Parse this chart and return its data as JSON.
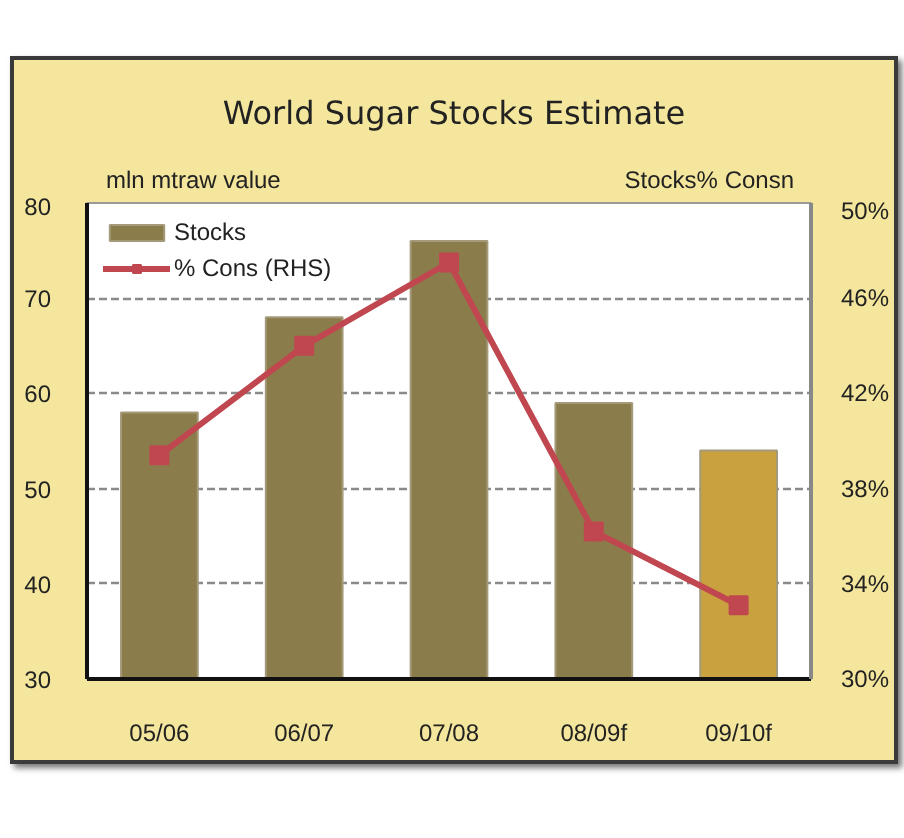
{
  "chart_data": {
    "type": "bar",
    "title": "World Sugar Stocks Estimate",
    "ylabel": "mln mtraw value",
    "y2label": "Stocks% Consn",
    "categories": [
      "05/06",
      "06/07",
      "07/08",
      "08/09f",
      "09/10f"
    ],
    "series": [
      {
        "name": "Stocks",
        "colors": [
          "#8b7d4b",
          "#8b7d4b",
          "#8b7d4b",
          "#8b7d4b",
          "#c9a23f"
        ],
        "values": [
          58,
          68,
          76,
          59,
          54
        ]
      },
      {
        "name": "% Cons (RHS)",
        "type": "line",
        "axis": "y2",
        "color": "#c0474f",
        "marker": "square",
        "values": [
          39.4,
          44.0,
          47.5,
          36.2,
          33.1
        ]
      }
    ],
    "ylim": [
      30,
      80
    ],
    "yticks": [
      30,
      40,
      50,
      60,
      70,
      80
    ],
    "y2lim": [
      30,
      50
    ],
    "y2ticks": [
      {
        "value": 30,
        "label": "30%"
      },
      {
        "value": 34,
        "label": "34%"
      },
      {
        "value": 38,
        "label": "38%"
      },
      {
        "value": 42,
        "label": "42%"
      },
      {
        "value": 46,
        "label": "46%"
      },
      {
        "value": 50,
        "label": "50%"
      }
    ],
    "grid": "y",
    "legend": "top left"
  }
}
